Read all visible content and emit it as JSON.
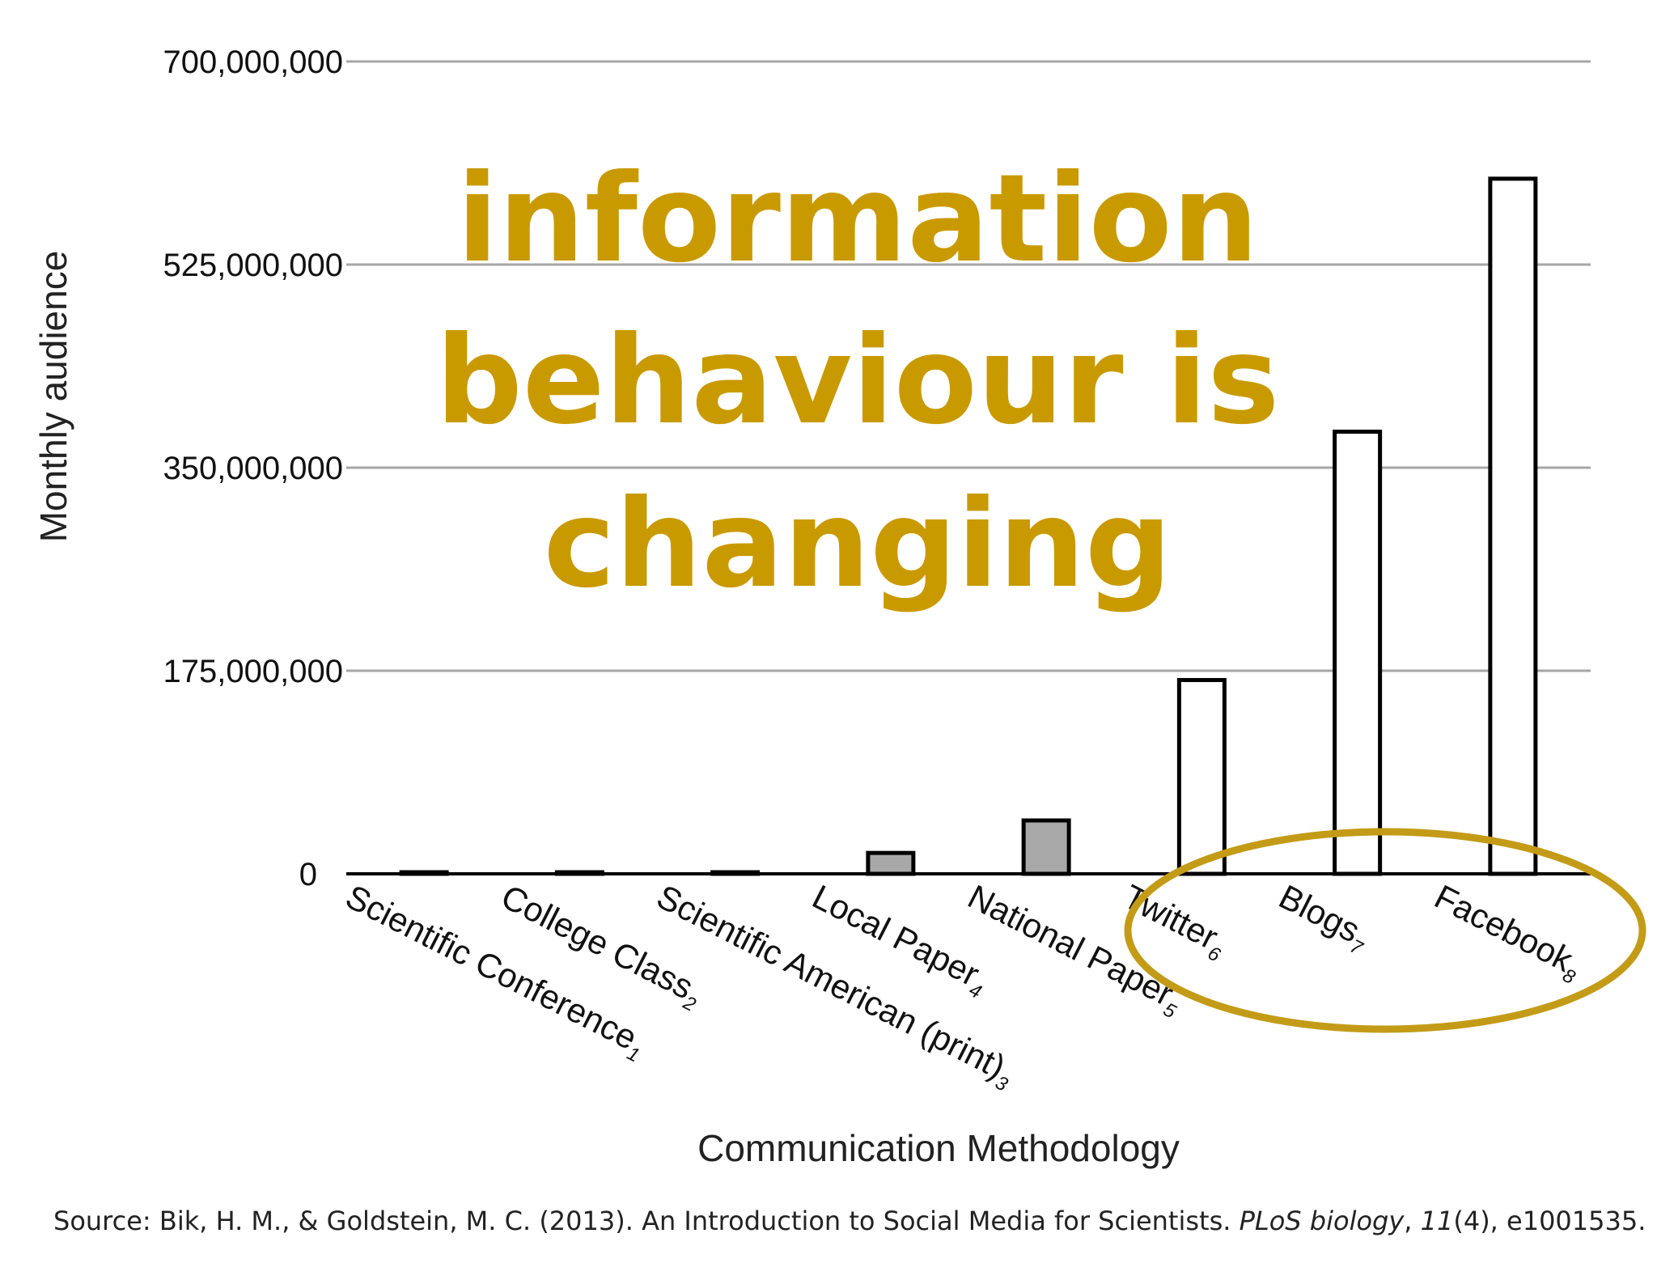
{
  "chart_data": {
    "type": "bar",
    "title": "",
    "xlabel": "Communication Methodology",
    "ylabel": "Monthly audience",
    "ylim": [
      0,
      700000000
    ],
    "yticks": [
      0,
      175000000,
      350000000,
      525000000,
      700000000
    ],
    "ytick_labels": [
      "0",
      "175,000,000",
      "350,000,000",
      "525,000,000",
      "700,000,000"
    ],
    "grid": true,
    "categories": [
      {
        "label": "Scientific Conference",
        "note": "1",
        "value": 1000,
        "style": "traditional"
      },
      {
        "label": "College Class",
        "note": "2",
        "value": 200,
        "style": "traditional"
      },
      {
        "label": "Scientific American (print)",
        "note": "3",
        "value": 1000000,
        "style": "traditional"
      },
      {
        "label": "Local Paper",
        "note": "4",
        "value": 18000000,
        "style": "traditional"
      },
      {
        "label": "National Paper",
        "note": "5",
        "value": 46000000,
        "style": "traditional"
      },
      {
        "label": "Twitter",
        "note": "6",
        "value": 167000000,
        "style": "social"
      },
      {
        "label": "Blogs",
        "note": "7",
        "value": 381000000,
        "style": "social"
      },
      {
        "label": "Facebook",
        "note": "8",
        "value": 599000000,
        "style": "social"
      }
    ],
    "colors": {
      "traditional": "#a8a8a8",
      "social": "#ffffff",
      "outline": "#000000",
      "grid": "#a6a6a6"
    }
  },
  "overlay": {
    "lines": [
      "information",
      "behaviour is",
      "changing"
    ],
    "color": "#C99A00"
  },
  "source": {
    "prefix": "Source: Bik, H. M., & Goldstein, M. C. (2013). An Introduction to Social Media for Scientists. ",
    "journal": "PLoS biology",
    "sep1": ", ",
    "volume": "11",
    "issue": "(4), e1001535."
  }
}
